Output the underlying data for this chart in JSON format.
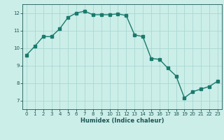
{
  "x": [
    0,
    1,
    2,
    3,
    4,
    5,
    6,
    7,
    8,
    9,
    10,
    11,
    12,
    13,
    14,
    15,
    16,
    17,
    18,
    19,
    20,
    21,
    22,
    23
  ],
  "y": [
    9.6,
    10.1,
    10.65,
    10.65,
    11.1,
    11.75,
    12.0,
    12.1,
    11.9,
    11.9,
    11.9,
    11.95,
    11.85,
    10.75,
    10.65,
    9.4,
    9.35,
    8.85,
    8.4,
    7.15,
    7.5,
    7.65,
    7.8,
    8.1
  ],
  "line_color": "#1a7a6e",
  "bg_color": "#cceee8",
  "grid_color": "#aad8d2",
  "xlabel": "Humidex (Indice chaleur)",
  "ylim": [
    6.5,
    12.5
  ],
  "xlim": [
    -0.5,
    23.5
  ],
  "yticks": [
    7,
    8,
    9,
    10,
    11,
    12
  ],
  "xticks": [
    0,
    1,
    2,
    3,
    4,
    5,
    6,
    7,
    8,
    9,
    10,
    11,
    12,
    13,
    14,
    15,
    16,
    17,
    18,
    19,
    20,
    21,
    22,
    23
  ],
  "xlabel_color": "#1a5555",
  "tick_color": "#1a5555",
  "marker_size": 2.5,
  "line_width": 1.0
}
